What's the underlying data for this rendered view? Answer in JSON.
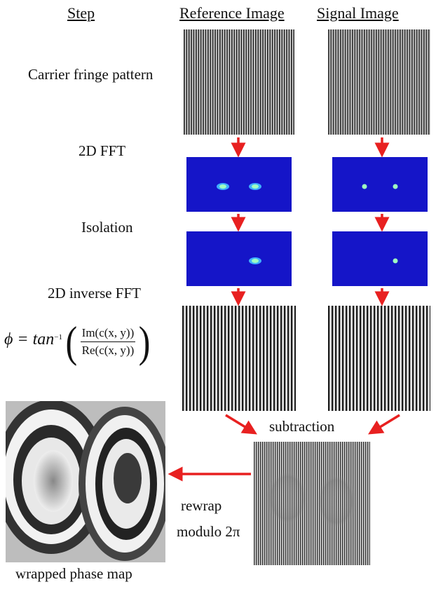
{
  "headers": {
    "step": "Step",
    "reference": "Reference Image",
    "signal": "Signal Image"
  },
  "steps": {
    "carrier": "Carrier fringe pattern",
    "fft": "2D FFT",
    "isolation": "Isolation",
    "inverse": "2D inverse FFT"
  },
  "formula": {
    "lhs": "ϕ = tan",
    "exponent": "−1",
    "numerator": "Im(c(x, y))",
    "denominator": "Re(c(x, y))"
  },
  "labels": {
    "subtraction": "subtraction",
    "rewrap": "rewrap",
    "modulo": "modulo 2π",
    "wrapped": "wrapped phase map"
  },
  "colors": {
    "arrow": "#e82020",
    "fft_bg": "#1515c8"
  }
}
